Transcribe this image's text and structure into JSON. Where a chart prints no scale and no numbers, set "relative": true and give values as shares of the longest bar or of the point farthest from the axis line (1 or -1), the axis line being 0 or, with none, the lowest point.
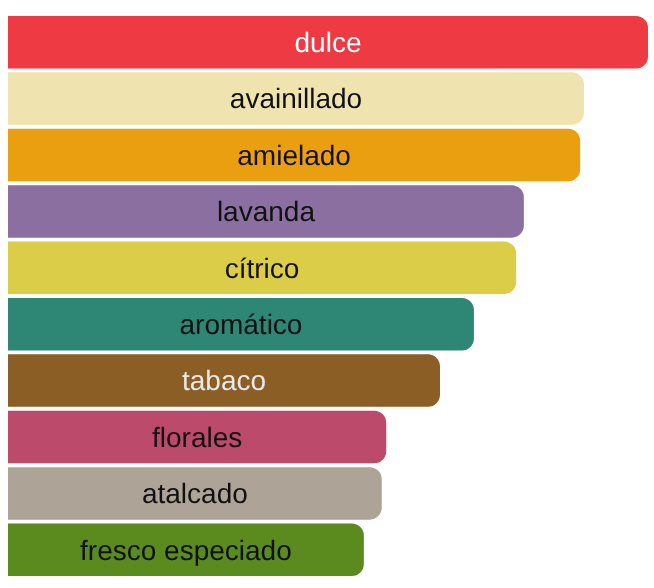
{
  "chart_data": {
    "type": "bar",
    "orientation": "horizontal",
    "relative": true,
    "categories": [
      "dulce",
      "avainillado",
      "amielado",
      "lavanda",
      "cítrico",
      "aromático",
      "tabaco",
      "florales",
      "atalcado",
      "fresco especiado"
    ],
    "values": [
      1,
      0.9,
      0.894,
      0.806,
      0.794,
      0.728,
      0.675,
      0.591,
      0.584,
      0.556
    ],
    "colors": [
      "#ee3a43",
      "#efe4b0",
      "#e99f10",
      "#8b6fa0",
      "#dccd48",
      "#2e8674",
      "#8a5e25",
      "#bc4a6b",
      "#ada497",
      "#5b8a1f"
    ]
  }
}
